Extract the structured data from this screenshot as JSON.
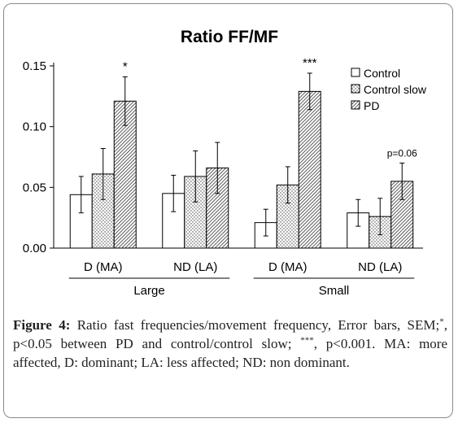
{
  "chart_data": {
    "type": "bar",
    "title": "Ratio FF/MF",
    "ylim": [
      0,
      0.15
    ],
    "yticks": [
      "0.00",
      "0.05",
      "0.10",
      "0.15"
    ],
    "categories": [
      "D (MA)",
      "ND (LA)",
      "D (MA)",
      "ND (LA)"
    ],
    "groups": [
      {
        "label": "Large",
        "categories": [
          0,
          1
        ]
      },
      {
        "label": "Small",
        "categories": [
          2,
          3
        ]
      }
    ],
    "series": [
      {
        "name": "Control",
        "pattern": "white",
        "values": [
          0.044,
          0.045,
          0.021,
          0.029
        ],
        "err": [
          0.015,
          0.015,
          0.011,
          0.011
        ]
      },
      {
        "name": "Control slow",
        "pattern": "dots",
        "values": [
          0.061,
          0.059,
          0.052,
          0.026
        ],
        "err": [
          0.021,
          0.021,
          0.015,
          0.015
        ]
      },
      {
        "name": "PD",
        "pattern": "hatch",
        "values": [
          0.121,
          0.066,
          0.129,
          0.055
        ],
        "err": [
          0.02,
          0.021,
          0.015,
          0.015
        ]
      }
    ],
    "annotations": [
      {
        "category": 0,
        "series": 2,
        "text": "*"
      },
      {
        "category": 2,
        "series": 2,
        "text": "***"
      },
      {
        "category": 3,
        "series": 2,
        "text": "p=0.06"
      }
    ],
    "legend_position": "top-right",
    "grid": false
  },
  "caption": {
    "label": "Figure 4:",
    "part1": " Ratio fast frequencies/movement frequency, Error bars, SEM;",
    "sup1": "*",
    "part2": ", p<0.05 between PD and control/control slow; ",
    "sup2": "***",
    "part3": ", p<0.001. MA: more affected, D: dominant; LA: less affected; ND: non dominant."
  }
}
